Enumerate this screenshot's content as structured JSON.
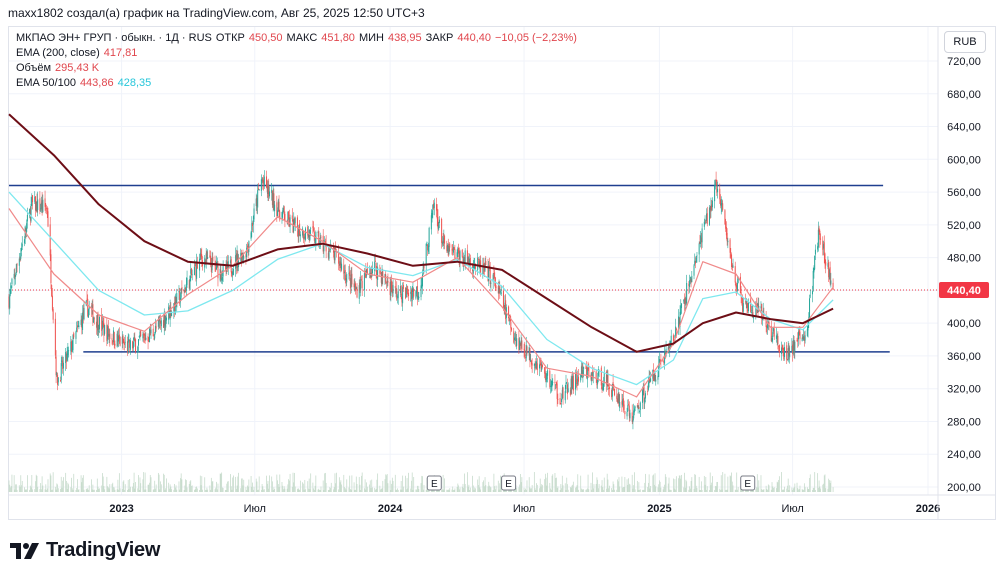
{
  "header": {
    "author_line": "maxx1802 создал(а) график на TradingView.com, Авг 25, 2025 12:50 UTC+3"
  },
  "legend": {
    "symbol": "МКПАО ЭН+ ГРУП · обыкн. · 1Д · RUS",
    "open_label": "ОТКР",
    "open_value": "450,50",
    "high_label": "МАКС",
    "high_value": "451,80",
    "low_label": "МИН",
    "low_value": "438,95",
    "close_label": "ЗАКР",
    "close_value": "440,40",
    "change_value": "−10,05 (−2,23%)",
    "ema200_label": "EMA (200, close)",
    "ema200_value": "417,81",
    "volume_label": "Объём",
    "volume_value": "295,43 K",
    "ema_50_100_label": "EMA 50/100",
    "ema50_value": "443,86",
    "ema100_value": "428,35"
  },
  "currency_button": "RUB",
  "footer": {
    "brand": "TradingView"
  },
  "colors": {
    "up": "#26a69a",
    "down": "#ef5350",
    "ema200": "#6d0e16",
    "ema50": "#f08a8a",
    "ema100": "#7ee8ef",
    "level_line": "#1f3f8f",
    "price_badge": "#f23645",
    "volume": "#c8dccd"
  },
  "chart_data": {
    "type": "candlestick",
    "price_axis": {
      "min": 200,
      "max": 720,
      "ticks": [
        "720,00",
        "680,00",
        "640,00",
        "600,00",
        "560,00",
        "520,00",
        "480,00",
        "440,00",
        "400,00",
        "360,00",
        "320,00",
        "280,00",
        "240,00",
        "200,00"
      ]
    },
    "time_axis": {
      "ticks": [
        {
          "label": "2023",
          "date": "2023-01-01",
          "bold": true
        },
        {
          "label": "Июл",
          "date": "2023-07-01",
          "bold": false
        },
        {
          "label": "2024",
          "date": "2024-01-01",
          "bold": true
        },
        {
          "label": "Июл",
          "date": "2024-07-01",
          "bold": false
        },
        {
          "label": "2025",
          "date": "2025-01-01",
          "bold": true
        },
        {
          "label": "Июл",
          "date": "2025-07-01",
          "bold": false
        },
        {
          "label": "2026",
          "date": "2026-01-01",
          "bold": true
        }
      ]
    },
    "last_price_label": "440,40",
    "last_price": 440.4,
    "horizontal_levels": [
      {
        "price": 568,
        "from": "2022-08-01",
        "to": "2025-11-01"
      },
      {
        "price": 365,
        "from": "2022-11-10",
        "to": "2025-11-10"
      }
    ],
    "earnings_markers": [
      {
        "label": "E",
        "date": "2024-03-01"
      },
      {
        "label": "E",
        "date": "2024-06-10"
      },
      {
        "label": "E",
        "date": "2025-05-01"
      }
    ],
    "close_path": [
      {
        "date": "2022-08-01",
        "close": 430
      },
      {
        "date": "2022-09-01",
        "close": 545
      },
      {
        "date": "2022-09-22",
        "close": 540
      },
      {
        "date": "2022-10-05",
        "close": 330
      },
      {
        "date": "2022-10-20",
        "close": 360
      },
      {
        "date": "2022-11-15",
        "close": 420
      },
      {
        "date": "2022-12-10",
        "close": 390
      },
      {
        "date": "2023-01-10",
        "close": 370
      },
      {
        "date": "2023-02-15",
        "close": 390
      },
      {
        "date": "2023-03-20",
        "close": 430
      },
      {
        "date": "2023-04-20",
        "close": 480
      },
      {
        "date": "2023-05-20",
        "close": 460
      },
      {
        "date": "2023-06-20",
        "close": 490
      },
      {
        "date": "2023-07-10",
        "close": 575
      },
      {
        "date": "2023-08-01",
        "close": 540
      },
      {
        "date": "2023-08-20",
        "close": 520
      },
      {
        "date": "2023-09-20",
        "close": 505
      },
      {
        "date": "2023-10-20",
        "close": 480
      },
      {
        "date": "2023-11-15",
        "close": 440
      },
      {
        "date": "2023-12-10",
        "close": 470
      },
      {
        "date": "2024-01-10",
        "close": 435
      },
      {
        "date": "2024-02-10",
        "close": 440
      },
      {
        "date": "2024-03-01",
        "close": 545
      },
      {
        "date": "2024-03-15",
        "close": 490
      },
      {
        "date": "2024-04-20",
        "close": 475
      },
      {
        "date": "2024-05-20",
        "close": 455
      },
      {
        "date": "2024-06-20",
        "close": 380
      },
      {
        "date": "2024-07-20",
        "close": 350
      },
      {
        "date": "2024-08-20",
        "close": 310
      },
      {
        "date": "2024-09-20",
        "close": 340
      },
      {
        "date": "2024-10-20",
        "close": 330
      },
      {
        "date": "2024-11-25",
        "close": 285
      },
      {
        "date": "2024-12-20",
        "close": 330
      },
      {
        "date": "2025-01-20",
        "close": 380
      },
      {
        "date": "2025-02-20",
        "close": 480
      },
      {
        "date": "2025-03-20",
        "close": 570
      },
      {
        "date": "2025-04-10",
        "close": 470
      },
      {
        "date": "2025-04-25",
        "close": 420
      },
      {
        "date": "2025-05-20",
        "close": 410
      },
      {
        "date": "2025-06-20",
        "close": 360
      },
      {
        "date": "2025-07-20",
        "close": 390
      },
      {
        "date": "2025-08-05",
        "close": 510
      },
      {
        "date": "2025-08-25",
        "close": 440
      }
    ],
    "ema200_path": [
      {
        "date": "2022-08-01",
        "value": 655
      },
      {
        "date": "2022-10-01",
        "value": 605
      },
      {
        "date": "2022-12-01",
        "value": 545
      },
      {
        "date": "2023-02-01",
        "value": 500
      },
      {
        "date": "2023-04-01",
        "value": 475
      },
      {
        "date": "2023-06-01",
        "value": 470
      },
      {
        "date": "2023-08-01",
        "value": 490
      },
      {
        "date": "2023-10-01",
        "value": 497
      },
      {
        "date": "2023-12-01",
        "value": 485
      },
      {
        "date": "2024-02-01",
        "value": 470
      },
      {
        "date": "2024-04-01",
        "value": 475
      },
      {
        "date": "2024-06-01",
        "value": 465
      },
      {
        "date": "2024-08-01",
        "value": 430
      },
      {
        "date": "2024-10-01",
        "value": 395
      },
      {
        "date": "2024-12-01",
        "value": 365
      },
      {
        "date": "2025-01-20",
        "value": 375
      },
      {
        "date": "2025-03-01",
        "value": 400
      },
      {
        "date": "2025-04-15",
        "value": 413
      },
      {
        "date": "2025-06-01",
        "value": 405
      },
      {
        "date": "2025-07-15",
        "value": 400
      },
      {
        "date": "2025-08-25",
        "value": 417.81
      }
    ],
    "ema100_path": [
      {
        "date": "2022-08-01",
        "value": 560
      },
      {
        "date": "2022-10-01",
        "value": 500
      },
      {
        "date": "2022-12-01",
        "value": 440
      },
      {
        "date": "2023-02-01",
        "value": 410
      },
      {
        "date": "2023-04-01",
        "value": 415
      },
      {
        "date": "2023-06-01",
        "value": 440
      },
      {
        "date": "2023-08-01",
        "value": 478
      },
      {
        "date": "2023-10-01",
        "value": 497
      },
      {
        "date": "2023-12-01",
        "value": 468
      },
      {
        "date": "2024-02-01",
        "value": 458
      },
      {
        "date": "2024-04-01",
        "value": 478
      },
      {
        "date": "2024-06-01",
        "value": 445
      },
      {
        "date": "2024-08-01",
        "value": 380
      },
      {
        "date": "2024-10-01",
        "value": 345
      },
      {
        "date": "2024-12-01",
        "value": 325
      },
      {
        "date": "2025-01-20",
        "value": 355
      },
      {
        "date": "2025-03-01",
        "value": 430
      },
      {
        "date": "2025-04-15",
        "value": 438
      },
      {
        "date": "2025-06-01",
        "value": 405
      },
      {
        "date": "2025-07-15",
        "value": 392
      },
      {
        "date": "2025-08-25",
        "value": 428.35
      }
    ],
    "ema50_path": [
      {
        "date": "2022-08-01",
        "value": 540
      },
      {
        "date": "2022-10-01",
        "value": 460
      },
      {
        "date": "2022-12-01",
        "value": 410
      },
      {
        "date": "2023-02-01",
        "value": 390
      },
      {
        "date": "2023-04-01",
        "value": 435
      },
      {
        "date": "2023-06-01",
        "value": 470
      },
      {
        "date": "2023-08-01",
        "value": 530
      },
      {
        "date": "2023-10-01",
        "value": 500
      },
      {
        "date": "2023-12-01",
        "value": 460
      },
      {
        "date": "2024-02-01",
        "value": 450
      },
      {
        "date": "2024-04-01",
        "value": 480
      },
      {
        "date": "2024-06-01",
        "value": 420
      },
      {
        "date": "2024-08-01",
        "value": 345
      },
      {
        "date": "2024-10-01",
        "value": 335
      },
      {
        "date": "2024-12-01",
        "value": 310
      },
      {
        "date": "2025-01-20",
        "value": 375
      },
      {
        "date": "2025-03-01",
        "value": 475
      },
      {
        "date": "2025-04-15",
        "value": 460
      },
      {
        "date": "2025-06-01",
        "value": 395
      },
      {
        "date": "2025-07-15",
        "value": 395
      },
      {
        "date": "2025-08-25",
        "value": 443.86
      }
    ]
  }
}
